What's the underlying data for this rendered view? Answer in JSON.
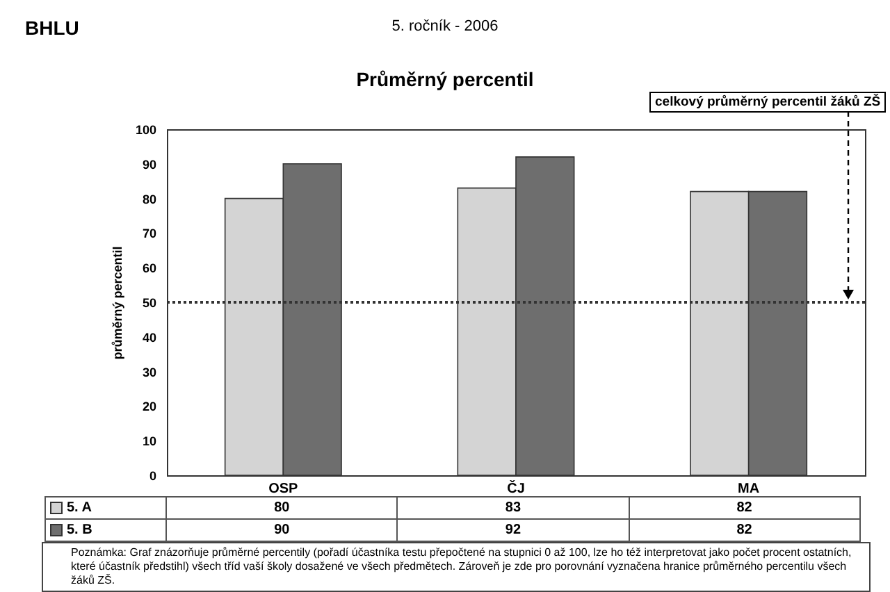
{
  "chart_data": {
    "type": "bar",
    "title": "Průměrný percentil",
    "subtitle": "5. ročník - 2006",
    "ylabel": "průměrný percentil",
    "categories": [
      "OSP",
      "ČJ",
      "MA"
    ],
    "series": [
      {
        "name": "5. A",
        "color": "#d4d4d4",
        "values": [
          80,
          83,
          82
        ]
      },
      {
        "name": "5. B",
        "color": "#6e6e6e",
        "values": [
          90,
          92,
          82
        ]
      }
    ],
    "ylim": [
      0,
      100
    ],
    "yticks": [
      0,
      10,
      20,
      30,
      40,
      50,
      60,
      70,
      80,
      90,
      100
    ],
    "grid": false,
    "legend": "bottom left",
    "data_labels": true,
    "ref_lines": [
      {
        "axis": "y",
        "value": 50,
        "label": "celkový průměrný percentil žáků ZŠ",
        "line_style": "dotted",
        "color": "#333333"
      }
    ],
    "annotations": [
      "BHLU",
      "Poznámka: Graf znázorňuje průměrné percentily (pořadí účastníka testu přepočtené na stupnici 0 až 100, lze ho též interpretovat jako počet procent ostatních, které účastník předstihl) všech tříd vaší školy dosažené ve všech předmětech. Zároveň je zde pro porovnání vyznačena hranice průměrného percentilu všech žáků ZŠ."
    ]
  }
}
